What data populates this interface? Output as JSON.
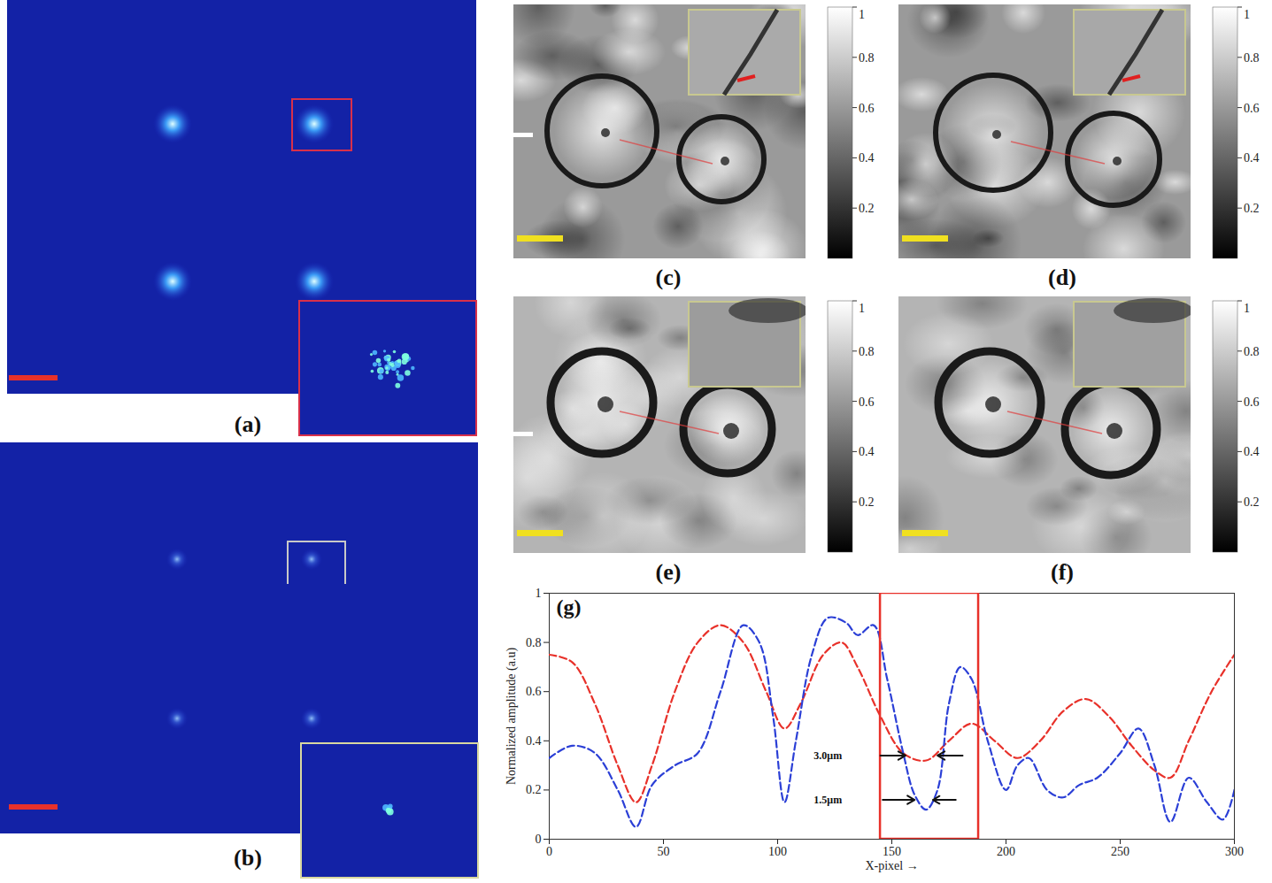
{
  "panel_labels": [
    "(a)",
    "(b)",
    "(c)",
    "(d)",
    "(e)",
    "(f)"
  ],
  "colorbar": {
    "range": [
      0,
      1
    ],
    "ticks": [
      0.2,
      0.4,
      0.6,
      0.8,
      1
    ]
  },
  "chart_data": {
    "type": "line",
    "panel_label": "(g)",
    "x_label": "X-pixel →",
    "y_label": "Normalized amplitude (a.u)",
    "xlim": [
      0,
      300
    ],
    "xticks": [
      0,
      50,
      100,
      150,
      200,
      250,
      300
    ],
    "ylim": [
      0,
      1
    ],
    "yticks": [
      0,
      0.2,
      0.4,
      0.6,
      0.8,
      1
    ],
    "grid": false,
    "highlight": {
      "x": [
        145,
        188
      ],
      "y": [
        0,
        1
      ],
      "color": "#e8312a"
    },
    "annotations": [
      {
        "text": "3.0μm",
        "x": 122,
        "y": 0.34,
        "arrows": [
          [
            145,
            156
          ],
          [
            181,
            170
          ]
        ]
      },
      {
        "text": "1.5μm",
        "x": 122,
        "y": 0.16,
        "arrows": [
          [
            146,
            160
          ],
          [
            178,
            168
          ]
        ]
      }
    ],
    "series": [
      {
        "color": "#e8312a",
        "line_style": "dashed",
        "x": [
          0,
          10,
          20,
          30,
          38,
          45,
          55,
          65,
          75,
          85,
          95,
          103,
          110,
          120,
          128,
          135,
          145,
          155,
          165,
          175,
          185,
          195,
          205,
          215,
          225,
          235,
          245,
          255,
          265,
          272,
          280,
          290,
          300
        ],
        "values": [
          0.75,
          0.72,
          0.55,
          0.3,
          0.15,
          0.3,
          0.6,
          0.8,
          0.87,
          0.8,
          0.6,
          0.45,
          0.55,
          0.75,
          0.8,
          0.7,
          0.5,
          0.35,
          0.32,
          0.4,
          0.47,
          0.4,
          0.33,
          0.4,
          0.52,
          0.57,
          0.5,
          0.38,
          0.28,
          0.25,
          0.4,
          0.6,
          0.75
        ]
      },
      {
        "color": "#2b3fd6",
        "line_style": "dashed",
        "x": [
          0,
          10,
          20,
          30,
          38,
          45,
          55,
          65,
          75,
          85,
          92,
          98,
          103,
          108,
          115,
          122,
          130,
          135,
          142,
          148,
          155,
          160,
          165,
          170,
          175,
          180,
          185,
          192,
          200,
          205,
          210,
          218,
          225,
          232,
          240,
          250,
          258,
          265,
          272,
          280,
          288,
          295,
          300
        ],
        "values": [
          0.33,
          0.38,
          0.35,
          0.2,
          0.05,
          0.22,
          0.3,
          0.35,
          0.6,
          0.87,
          0.8,
          0.5,
          0.15,
          0.4,
          0.75,
          0.9,
          0.88,
          0.83,
          0.87,
          0.65,
          0.35,
          0.18,
          0.12,
          0.2,
          0.55,
          0.7,
          0.65,
          0.4,
          0.2,
          0.3,
          0.33,
          0.2,
          0.17,
          0.22,
          0.25,
          0.35,
          0.45,
          0.3,
          0.07,
          0.25,
          0.15,
          0.08,
          0.2
        ]
      }
    ]
  }
}
